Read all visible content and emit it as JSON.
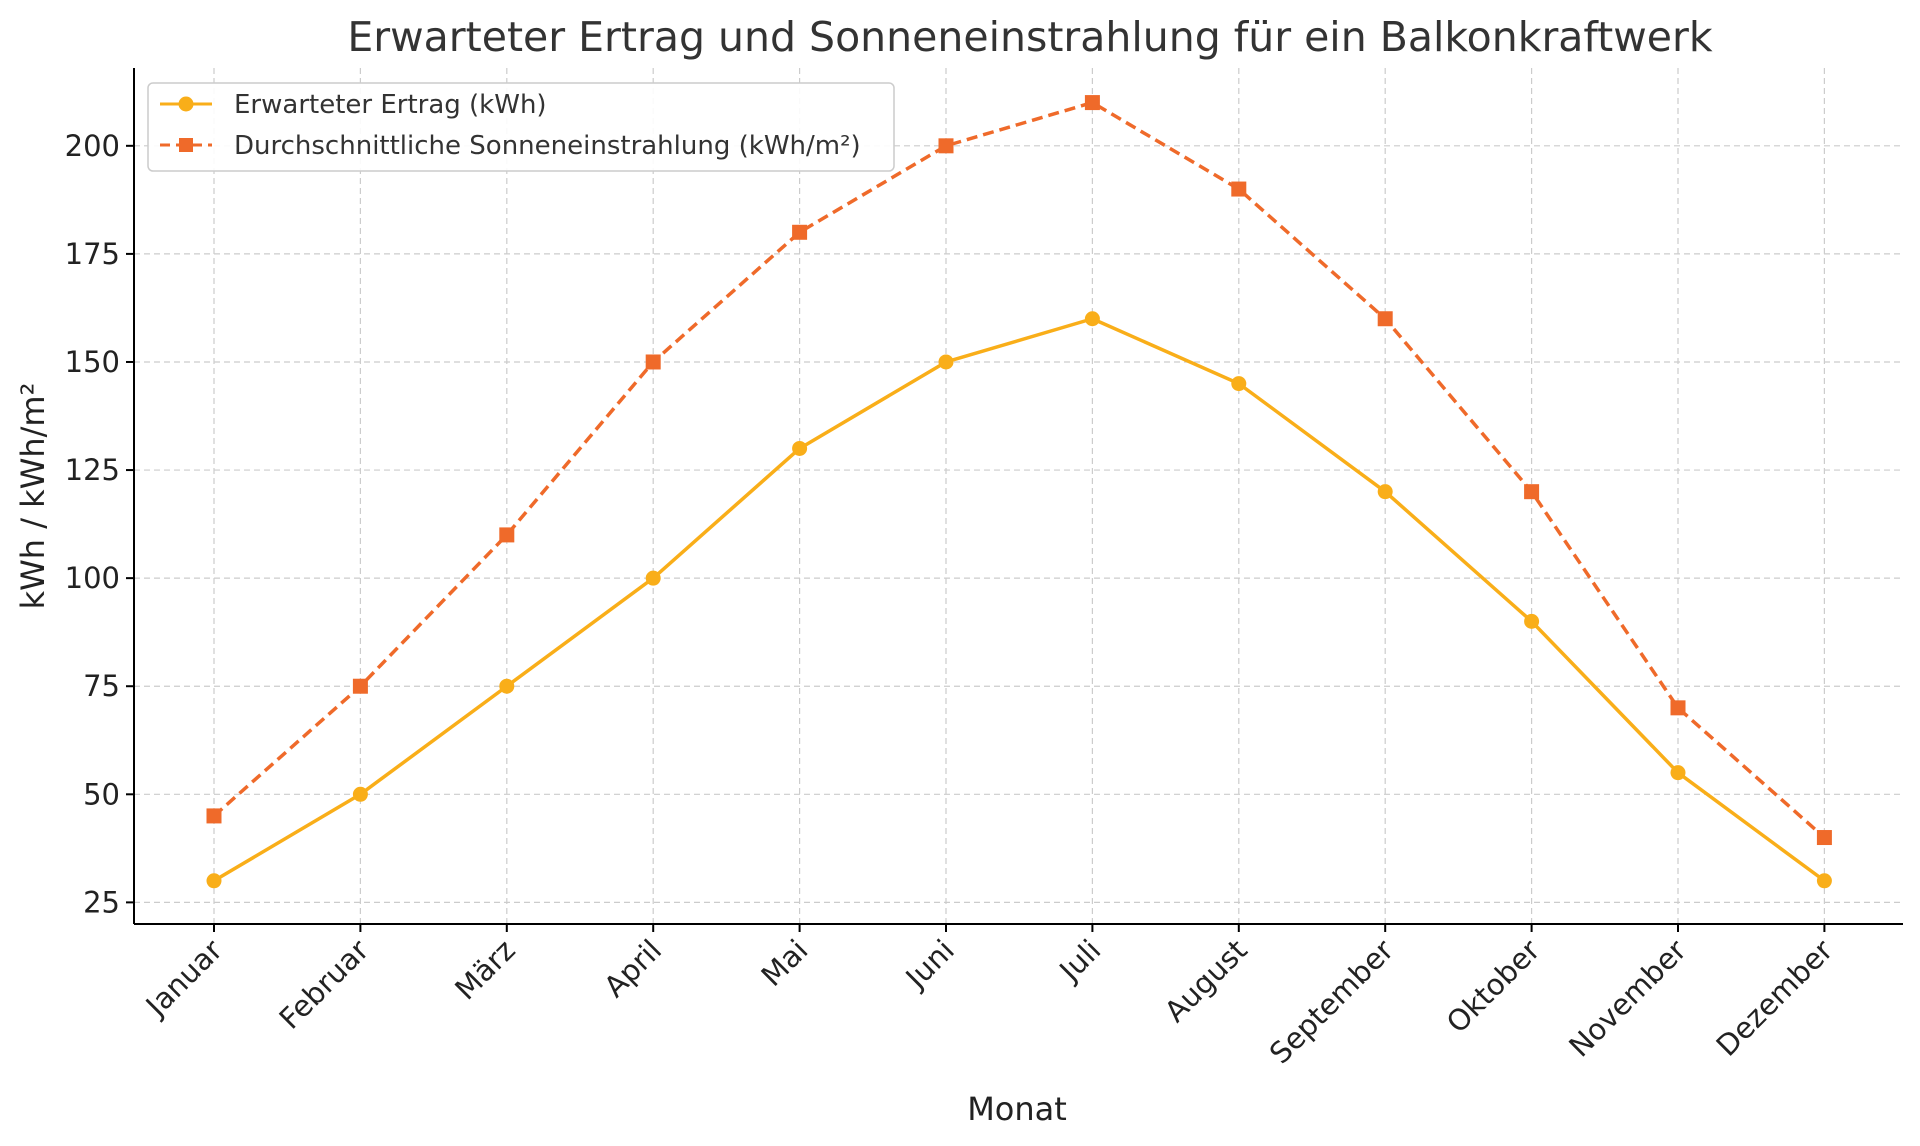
{
  "chart_data": {
    "type": "line",
    "title": "Erwarteter Ertrag und Sonneneinstrahlung für ein Balkonkraftwerk",
    "xlabel": "Monat",
    "ylabel": "kWh / kWh/m²",
    "categories": [
      "Januar",
      "Februar",
      "März",
      "April",
      "Mai",
      "Juni",
      "Juli",
      "August",
      "September",
      "Oktober",
      "November",
      "Dezember"
    ],
    "ylim": [
      20,
      218
    ],
    "yticks": [
      25,
      50,
      75,
      100,
      125,
      150,
      175,
      200
    ],
    "grid": true,
    "legend_position": "top-left",
    "series": [
      {
        "name": "Erwarteter Ertrag (kWh)",
        "values": [
          30,
          50,
          75,
          100,
          130,
          150,
          160,
          145,
          120,
          90,
          55,
          30
        ],
        "color": "#F9AE19",
        "line_style": "solid",
        "marker": "circle"
      },
      {
        "name": "Durchschnittliche Sonneneinstrahlung (kWh/m²)",
        "values": [
          45,
          75,
          110,
          150,
          180,
          200,
          210,
          190,
          160,
          120,
          70,
          40
        ],
        "color": "#EF6A2A",
        "line_style": "dashed",
        "marker": "square"
      }
    ]
  }
}
